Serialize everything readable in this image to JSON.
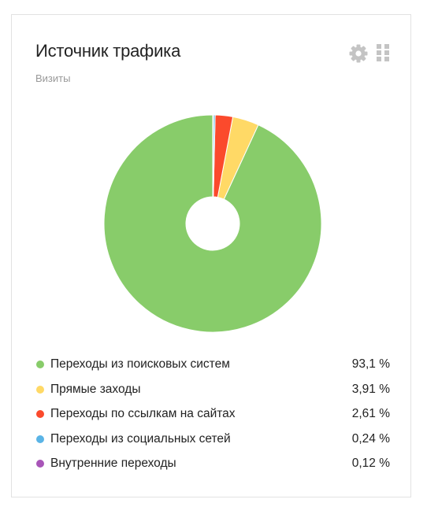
{
  "widget": {
    "title": "Источник трафика",
    "subtitle": "Визиты"
  },
  "icons": {
    "settings": "gear-icon",
    "drag": "grid-dots-icon",
    "icon_color": "#c4c4c4"
  },
  "chart_data": {
    "type": "pie",
    "donut": true,
    "start_angle_deg": 0,
    "legend_position": "bottom",
    "slices": [
      {
        "label": "Переходы из поисковых систем",
        "value": 93.1,
        "display": "93,1 %",
        "color": "#88cc6a"
      },
      {
        "label": "Прямые заходы",
        "value": 3.91,
        "display": "3,91 %",
        "color": "#ffd966"
      },
      {
        "label": "Переходы по ссылкам на сайтах",
        "value": 2.61,
        "display": "2,61 %",
        "color": "#fb4a2c"
      },
      {
        "label": "Переходы из социальных сетей",
        "value": 0.24,
        "display": "0,24 %",
        "color": "#5ab4e6"
      },
      {
        "label": "Внутренние переходы",
        "value": 0.12,
        "display": "0,12 %",
        "color": "#a855b8"
      }
    ]
  }
}
